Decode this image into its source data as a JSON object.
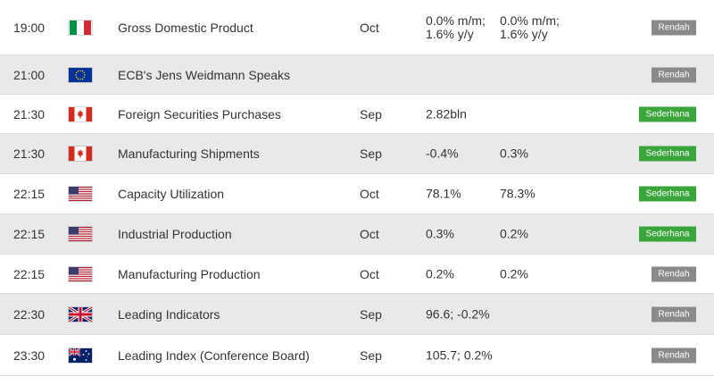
{
  "calendar": {
    "rows": [
      {
        "time": "19:00",
        "flag": "italy-flag-icon",
        "event": "Gross Domestic Product",
        "period": "Oct",
        "actual": "0.0% m/m; 1.6% y/y",
        "forecast": "0.0% m/m; 1.6% y/y",
        "impact": "Rendah",
        "impact_level": "low"
      },
      {
        "time": "21:00",
        "flag": "eu-flag-icon",
        "event": "ECB's Jens Weidmann Speaks",
        "period": "",
        "actual": "",
        "forecast": "",
        "impact": "Rendah",
        "impact_level": "low"
      },
      {
        "time": "21:30",
        "flag": "canada-flag-icon",
        "event": "Foreign Securities Purchases",
        "period": "Sep",
        "actual": "2.82bln",
        "forecast": "",
        "impact": "Sederhana",
        "impact_level": "mid"
      },
      {
        "time": "21:30",
        "flag": "canada-flag-icon",
        "event": "Manufacturing Shipments",
        "period": "Sep",
        "actual": "-0.4%",
        "forecast": "0.3%",
        "impact": "Sederhana",
        "impact_level": "mid"
      },
      {
        "time": "22:15",
        "flag": "usa-flag-icon",
        "event": "Capacity Utilization",
        "period": "Oct",
        "actual": "78.1%",
        "forecast": "78.3%",
        "impact": "Sederhana",
        "impact_level": "mid"
      },
      {
        "time": "22:15",
        "flag": "usa-flag-icon",
        "event": "Industrial Production",
        "period": "Oct",
        "actual": "0.3%",
        "forecast": "0.2%",
        "impact": "Sederhana",
        "impact_level": "mid"
      },
      {
        "time": "22:15",
        "flag": "usa-flag-icon",
        "event": "Manufacturing Production",
        "period": "Oct",
        "actual": "0.2%",
        "forecast": "0.2%",
        "impact": "Rendah",
        "impact_level": "low"
      },
      {
        "time": "22:30",
        "flag": "uk-flag-icon",
        "event": "Leading Indicators",
        "period": "Sep",
        "actual": "96.6; -0.2%",
        "forecast": "",
        "impact": "Rendah",
        "impact_level": "low"
      },
      {
        "time": "23:30",
        "flag": "australia-flag-icon",
        "event": "Leading Index (Conference Board)",
        "period": "Sep",
        "actual": "105.7; 0.2%",
        "forecast": "",
        "impact": "Rendah",
        "impact_level": "low"
      }
    ]
  }
}
